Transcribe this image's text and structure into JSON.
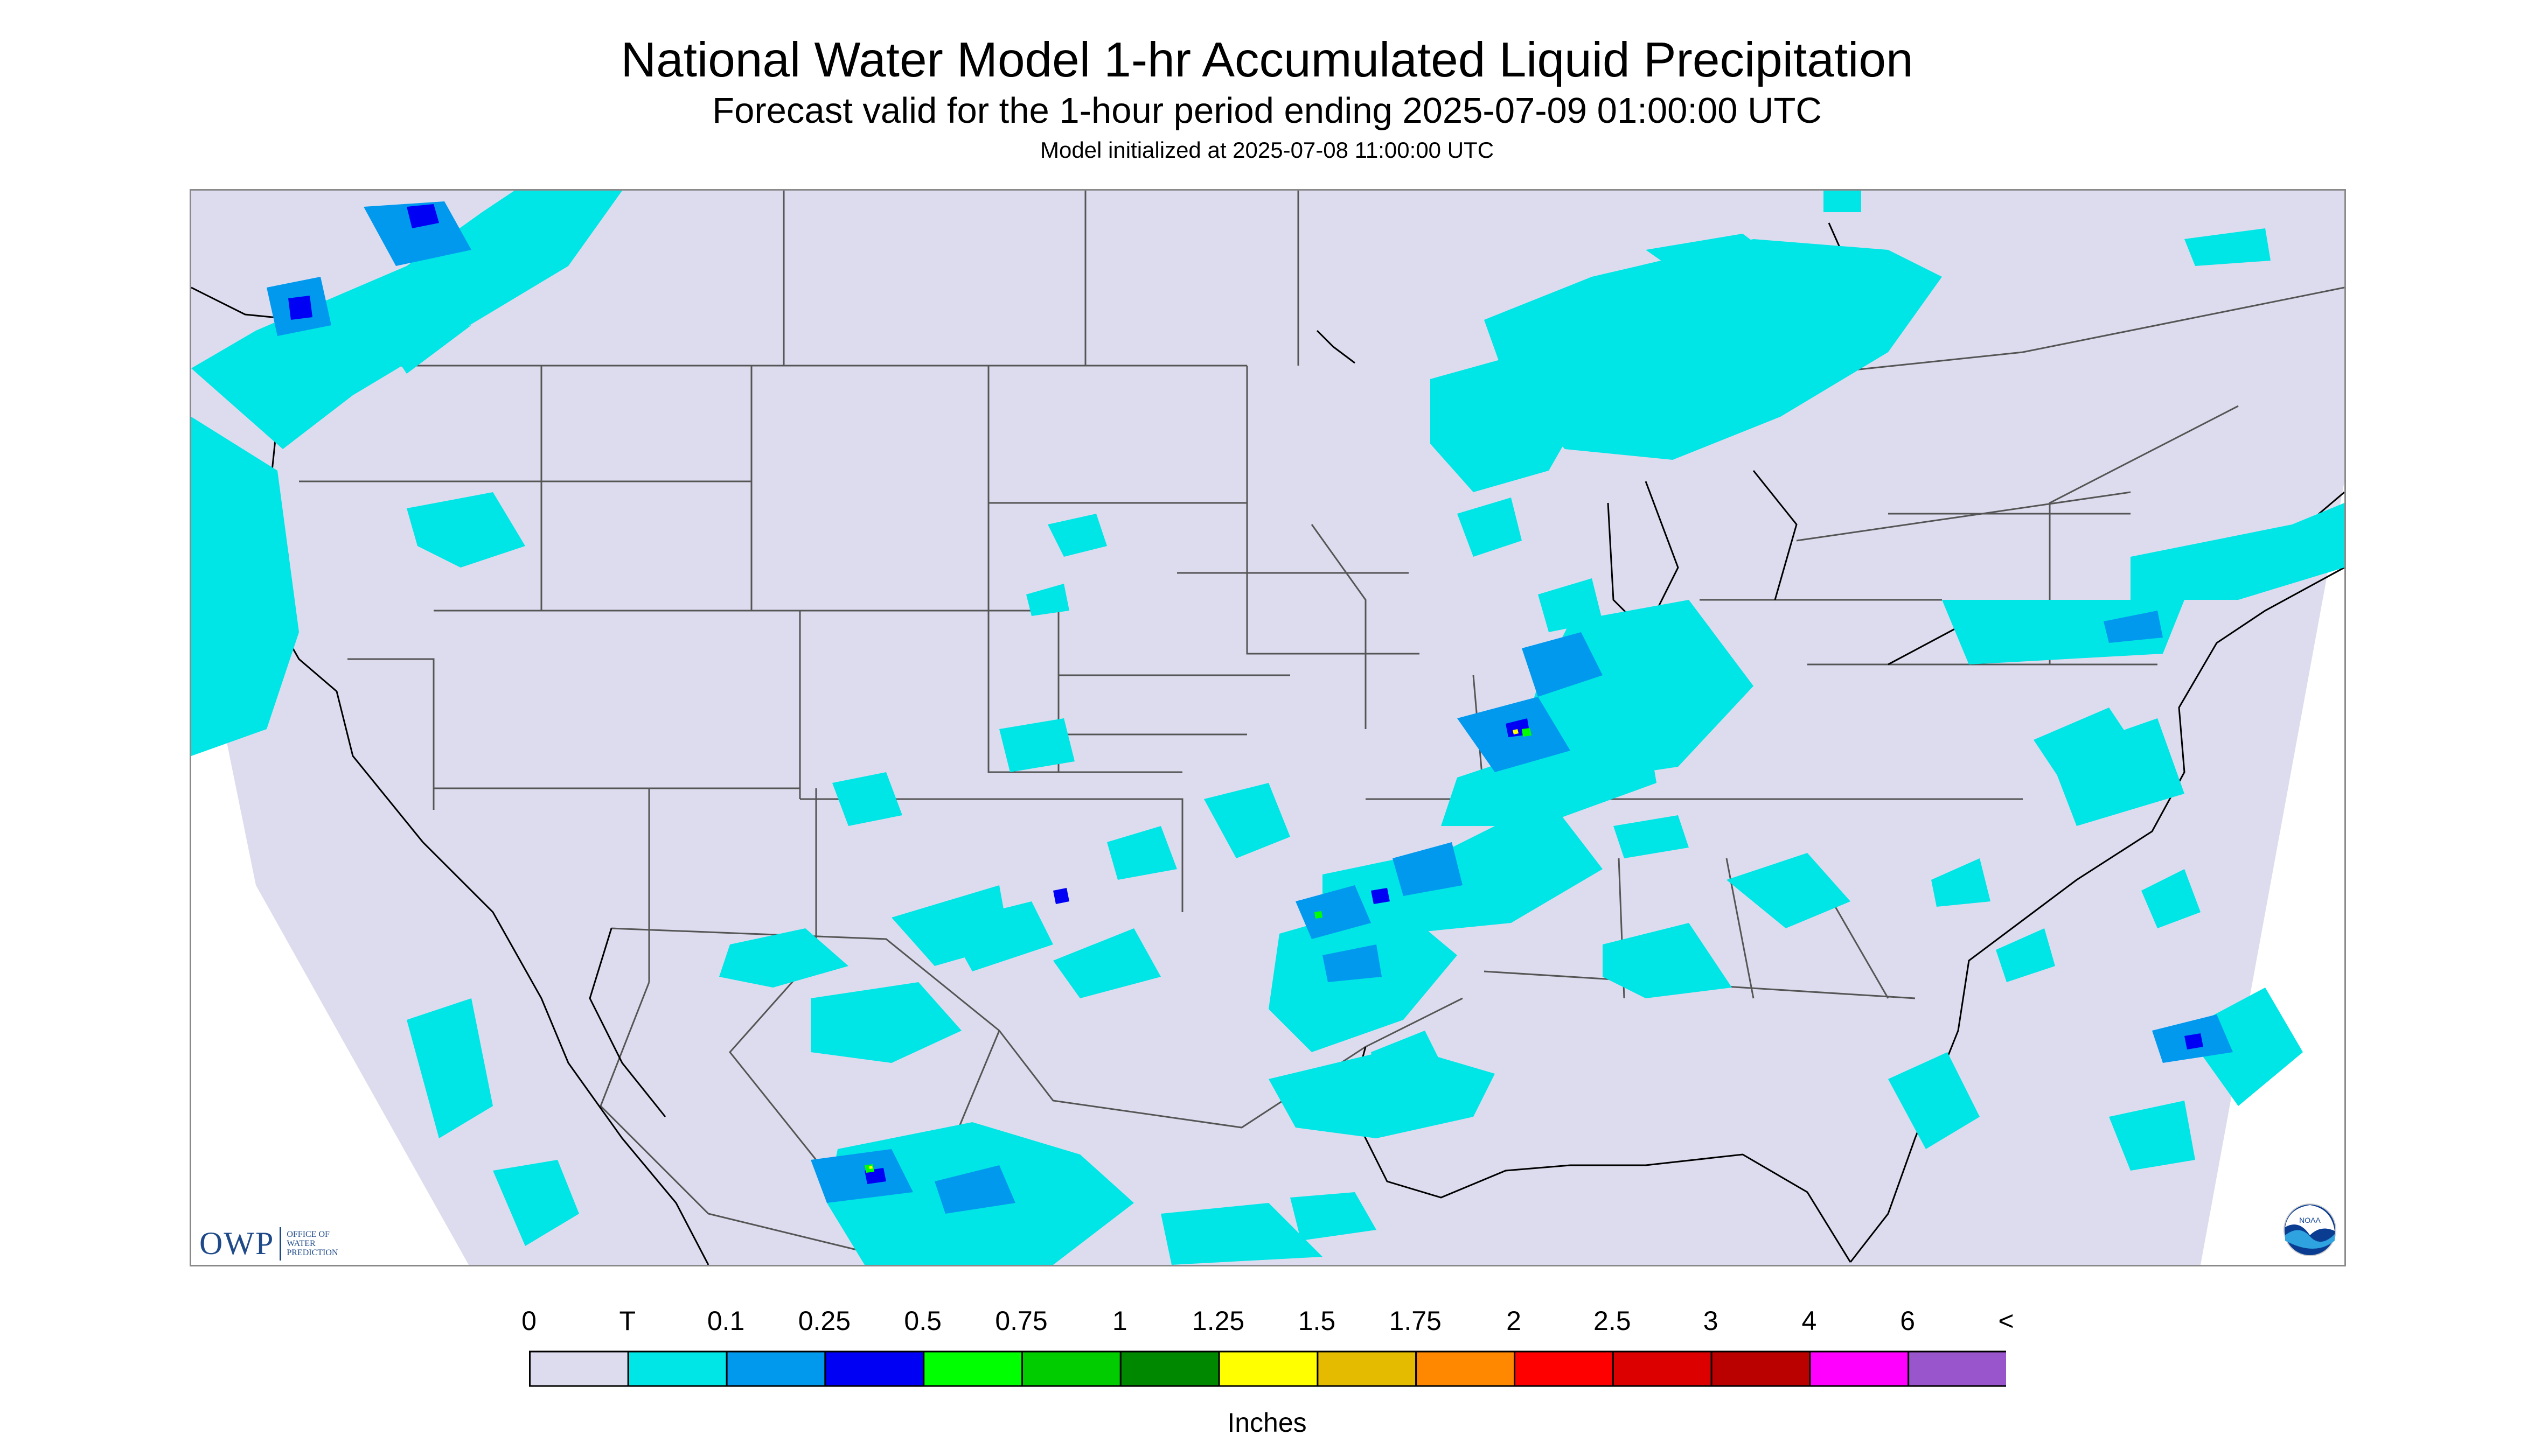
{
  "title": "National Water Model 1-hr Accumulated Liquid Precipitation",
  "subtitle": "Forecast valid for the 1-hour period ending 2025-07-09 01:00:00 UTC",
  "init_line": "Model initialized at 2025-07-08 11:00:00 UTC",
  "map_region": "Contiguous United States",
  "logo": {
    "owp_text": "OWP",
    "owp_sub": [
      "OFFICE OF",
      "WATER",
      "PREDICTION"
    ],
    "noaa_text": "NOAA"
  },
  "legend": {
    "units": "Inches",
    "labels": [
      "0",
      "T",
      "0.1",
      "0.25",
      "0.5",
      "0.75",
      "1",
      "1.25",
      "1.5",
      "1.75",
      "2",
      "2.5",
      "3",
      "4",
      "6",
      "<"
    ],
    "colors": [
      "#dcdcee",
      "#00e5e5",
      "#0099ee",
      "#0000f5",
      "#00ff00",
      "#00cc00",
      "#008800",
      "#ffff00",
      "#e5bb00",
      "#ff8800",
      "#ff0000",
      "#dd0000",
      "#bb0000",
      "#ff00ff",
      "#9955cc"
    ]
  },
  "colors": {
    "background_fill": "#dcdcee",
    "trace": "#00e5e5",
    "light": "#0099ee",
    "moderate": "#0000f5",
    "heavy": "#00ff00",
    "state_lines": "#555555",
    "coast_lines": "#000000"
  }
}
